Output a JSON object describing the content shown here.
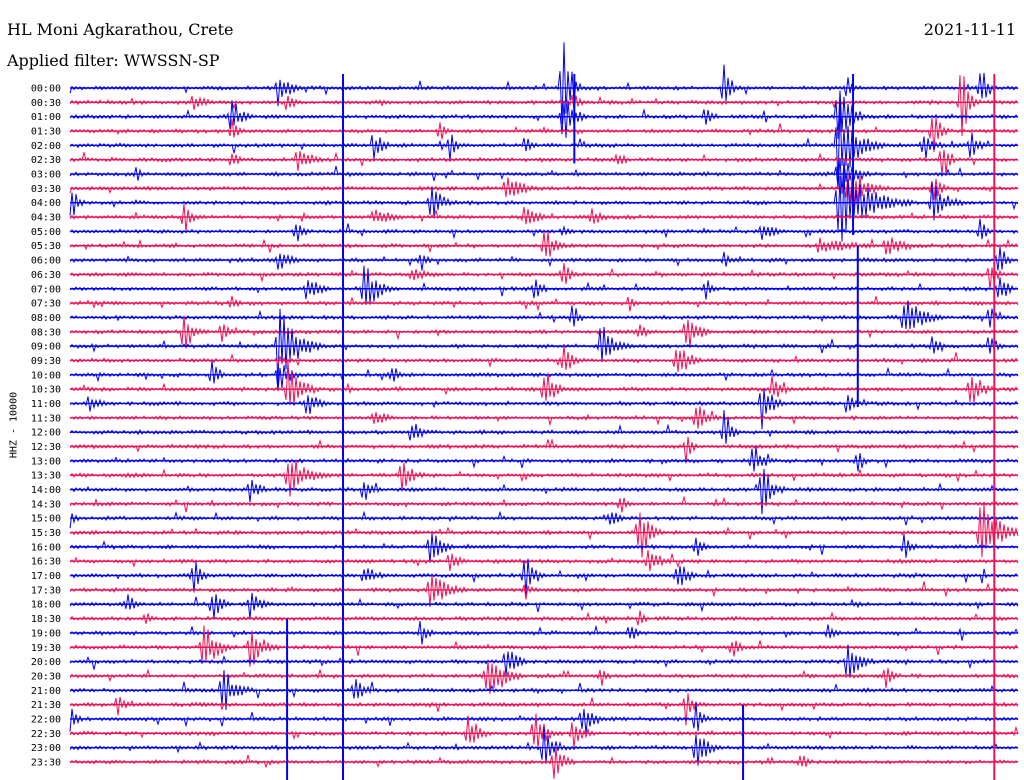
{
  "header": {
    "station": "HL Moni Agkarathou, Crete",
    "filter": "Applied filter: WWSSN-SP",
    "date": "2021-11-11"
  },
  "chart_data": {
    "type": "line",
    "title": "HL Moni Agkarathou, Crete",
    "subtitle": "Applied filter: WWSSN-SP",
    "date": "2021-11-11",
    "ylabel": "HHZ - 10000",
    "row_interval_minutes": 30,
    "row_labels": [
      "00:00",
      "00:30",
      "01:00",
      "01:30",
      "02:00",
      "02:30",
      "03:00",
      "03:30",
      "04:00",
      "04:30",
      "05:00",
      "05:30",
      "06:00",
      "06:30",
      "07:00",
      "07:30",
      "08:00",
      "08:30",
      "09:00",
      "09:30",
      "10:00",
      "10:30",
      "11:00",
      "11:30",
      "12:00",
      "12:30",
      "13:00",
      "13:30",
      "14:00",
      "14:30",
      "15:00",
      "15:30",
      "16:00",
      "16:30",
      "17:00",
      "17:30",
      "18:00",
      "18:30",
      "19:00",
      "19:30",
      "20:00",
      "20:30",
      "21:00",
      "21:30",
      "22:00",
      "22:30",
      "23:00",
      "23:30"
    ],
    "colors": {
      "even_rows": "#0000ee",
      "odd_rows": "#ee1155"
    },
    "grid": false,
    "events": [
      {
        "row": 0,
        "x": 0.22,
        "amp": 22,
        "dur": 0.03
      },
      {
        "row": 0,
        "x": 0.52,
        "amp": 90,
        "dur": 0.02
      },
      {
        "row": 0,
        "x": 0.69,
        "amp": 28,
        "dur": 0.02
      },
      {
        "row": 0,
        "x": 0.82,
        "amp": 14,
        "dur": 0.02
      },
      {
        "row": 0,
        "x": 0.96,
        "amp": 30,
        "dur": 0.02
      },
      {
        "row": 1,
        "x": 0.13,
        "amp": 10,
        "dur": 0.04
      },
      {
        "row": 1,
        "x": 0.23,
        "amp": 16,
        "dur": 0.02
      },
      {
        "row": 1,
        "x": 0.53,
        "amp": 12,
        "dur": 0.02
      },
      {
        "row": 1,
        "x": 0.94,
        "amp": 55,
        "dur": 0.02
      },
      {
        "row": 2,
        "x": 0.17,
        "amp": 22,
        "dur": 0.03
      },
      {
        "row": 2,
        "x": 0.52,
        "amp": 30,
        "dur": 0.03
      },
      {
        "row": 2,
        "x": 0.67,
        "amp": 16,
        "dur": 0.02
      },
      {
        "row": 2,
        "x": 0.81,
        "amp": 55,
        "dur": 0.03
      },
      {
        "row": 3,
        "x": 0.17,
        "amp": 14,
        "dur": 0.02
      },
      {
        "row": 3,
        "x": 0.39,
        "amp": 12,
        "dur": 0.02
      },
      {
        "row": 3,
        "x": 0.91,
        "amp": 30,
        "dur": 0.02
      },
      {
        "row": 4,
        "x": 0.32,
        "amp": 16,
        "dur": 0.03
      },
      {
        "row": 4,
        "x": 0.4,
        "amp": 18,
        "dur": 0.02
      },
      {
        "row": 4,
        "x": 0.48,
        "amp": 12,
        "dur": 0.02
      },
      {
        "row": 4,
        "x": 0.81,
        "amp": 48,
        "dur": 0.05
      },
      {
        "row": 4,
        "x": 0.9,
        "amp": 20,
        "dur": 0.03
      },
      {
        "row": 4,
        "x": 0.95,
        "amp": 22,
        "dur": 0.02
      },
      {
        "row": 5,
        "x": 0.17,
        "amp": 12,
        "dur": 0.02
      },
      {
        "row": 5,
        "x": 0.24,
        "amp": 16,
        "dur": 0.04
      },
      {
        "row": 5,
        "x": 0.58,
        "amp": 10,
        "dur": 0.02
      },
      {
        "row": 5,
        "x": 0.92,
        "amp": 28,
        "dur": 0.02
      },
      {
        "row": 6,
        "x": 0.07,
        "amp": 10,
        "dur": 0.02
      },
      {
        "row": 6,
        "x": 0.81,
        "amp": 28,
        "dur": 0.04
      },
      {
        "row": 7,
        "x": 0.46,
        "amp": 16,
        "dur": 0.05
      },
      {
        "row": 7,
        "x": 0.82,
        "amp": 28,
        "dur": 0.05
      },
      {
        "row": 7,
        "x": 0.91,
        "amp": 14,
        "dur": 0.03
      },
      {
        "row": 8,
        "x": 0.0,
        "amp": 24,
        "dur": 0.02
      },
      {
        "row": 8,
        "x": 0.38,
        "amp": 26,
        "dur": 0.03
      },
      {
        "row": 8,
        "x": 0.81,
        "amp": 50,
        "dur": 0.08
      },
      {
        "row": 8,
        "x": 0.91,
        "amp": 26,
        "dur": 0.04
      },
      {
        "row": 9,
        "x": 0.12,
        "amp": 22,
        "dur": 0.02
      },
      {
        "row": 9,
        "x": 0.32,
        "amp": 10,
        "dur": 0.06
      },
      {
        "row": 9,
        "x": 0.48,
        "amp": 18,
        "dur": 0.03
      },
      {
        "row": 9,
        "x": 0.55,
        "amp": 12,
        "dur": 0.03
      },
      {
        "row": 10,
        "x": 0.24,
        "amp": 12,
        "dur": 0.02
      },
      {
        "row": 10,
        "x": 0.52,
        "amp": 10,
        "dur": 0.02
      },
      {
        "row": 10,
        "x": 0.73,
        "amp": 10,
        "dur": 0.04
      },
      {
        "row": 10,
        "x": 0.96,
        "amp": 14,
        "dur": 0.02
      },
      {
        "row": 11,
        "x": 0.5,
        "amp": 22,
        "dur": 0.03
      },
      {
        "row": 11,
        "x": 0.79,
        "amp": 10,
        "dur": 0.1
      },
      {
        "row": 11,
        "x": 0.86,
        "amp": 14,
        "dur": 0.05
      },
      {
        "row": 12,
        "x": 0.22,
        "amp": 12,
        "dur": 0.04
      },
      {
        "row": 12,
        "x": 0.37,
        "amp": 14,
        "dur": 0.02
      },
      {
        "row": 12,
        "x": 0.69,
        "amp": 12,
        "dur": 0.02
      },
      {
        "row": 12,
        "x": 0.98,
        "amp": 22,
        "dur": 0.02
      },
      {
        "row": 13,
        "x": 0.36,
        "amp": 8,
        "dur": 0.06
      },
      {
        "row": 13,
        "x": 0.52,
        "amp": 16,
        "dur": 0.02
      },
      {
        "row": 13,
        "x": 0.97,
        "amp": 20,
        "dur": 0.02
      },
      {
        "row": 14,
        "x": 0.25,
        "amp": 14,
        "dur": 0.04
      },
      {
        "row": 14,
        "x": 0.31,
        "amp": 30,
        "dur": 0.04
      },
      {
        "row": 14,
        "x": 0.49,
        "amp": 18,
        "dur": 0.02
      },
      {
        "row": 14,
        "x": 0.67,
        "amp": 14,
        "dur": 0.02
      },
      {
        "row": 14,
        "x": 0.98,
        "amp": 22,
        "dur": 0.02
      },
      {
        "row": 15,
        "x": 0.17,
        "amp": 10,
        "dur": 0.02
      },
      {
        "row": 15,
        "x": 0.59,
        "amp": 10,
        "dur": 0.02
      },
      {
        "row": 16,
        "x": 0.53,
        "amp": 16,
        "dur": 0.02
      },
      {
        "row": 16,
        "x": 0.88,
        "amp": 26,
        "dur": 0.05
      },
      {
        "row": 16,
        "x": 0.97,
        "amp": 14,
        "dur": 0.02
      },
      {
        "row": 17,
        "x": 0.12,
        "amp": 24,
        "dur": 0.03
      },
      {
        "row": 17,
        "x": 0.16,
        "amp": 12,
        "dur": 0.02
      },
      {
        "row": 17,
        "x": 0.6,
        "amp": 12,
        "dur": 0.03
      },
      {
        "row": 17,
        "x": 0.65,
        "amp": 28,
        "dur": 0.03
      },
      {
        "row": 18,
        "x": 0.22,
        "amp": 48,
        "dur": 0.05
      },
      {
        "row": 18,
        "x": 0.56,
        "amp": 30,
        "dur": 0.04
      },
      {
        "row": 18,
        "x": 0.91,
        "amp": 14,
        "dur": 0.02
      },
      {
        "row": 18,
        "x": 0.97,
        "amp": 18,
        "dur": 0.02
      },
      {
        "row": 19,
        "x": 0.22,
        "amp": 12,
        "dur": 0.02
      },
      {
        "row": 19,
        "x": 0.52,
        "amp": 20,
        "dur": 0.03
      },
      {
        "row": 19,
        "x": 0.64,
        "amp": 28,
        "dur": 0.03
      },
      {
        "row": 20,
        "x": 0.15,
        "amp": 18,
        "dur": 0.02
      },
      {
        "row": 20,
        "x": 0.22,
        "amp": 20,
        "dur": 0.03
      },
      {
        "row": 20,
        "x": 0.34,
        "amp": 12,
        "dur": 0.02
      },
      {
        "row": 21,
        "x": 0.23,
        "amp": 30,
        "dur": 0.04
      },
      {
        "row": 21,
        "x": 0.5,
        "amp": 26,
        "dur": 0.03
      },
      {
        "row": 21,
        "x": 0.74,
        "amp": 18,
        "dur": 0.03
      },
      {
        "row": 21,
        "x": 0.95,
        "amp": 26,
        "dur": 0.03
      },
      {
        "row": 22,
        "x": 0.02,
        "amp": 12,
        "dur": 0.03
      },
      {
        "row": 22,
        "x": 0.25,
        "amp": 18,
        "dur": 0.03
      },
      {
        "row": 22,
        "x": 0.73,
        "amp": 28,
        "dur": 0.03
      },
      {
        "row": 22,
        "x": 0.82,
        "amp": 14,
        "dur": 0.02
      },
      {
        "row": 23,
        "x": 0.32,
        "amp": 10,
        "dur": 0.04
      },
      {
        "row": 23,
        "x": 0.66,
        "amp": 22,
        "dur": 0.03
      },
      {
        "row": 24,
        "x": 0.36,
        "amp": 16,
        "dur": 0.03
      },
      {
        "row": 24,
        "x": 0.69,
        "amp": 28,
        "dur": 0.02
      },
      {
        "row": 25,
        "x": 0.65,
        "amp": 18,
        "dur": 0.02
      },
      {
        "row": 26,
        "x": 0.72,
        "amp": 22,
        "dur": 0.03
      },
      {
        "row": 26,
        "x": 0.83,
        "amp": 16,
        "dur": 0.02
      },
      {
        "row": 27,
        "x": 0.23,
        "amp": 26,
        "dur": 0.05
      },
      {
        "row": 27,
        "x": 0.35,
        "amp": 20,
        "dur": 0.03
      },
      {
        "row": 28,
        "x": 0.19,
        "amp": 14,
        "dur": 0.03
      },
      {
        "row": 28,
        "x": 0.31,
        "amp": 16,
        "dur": 0.03
      },
      {
        "row": 28,
        "x": 0.73,
        "amp": 28,
        "dur": 0.03
      },
      {
        "row": 29,
        "x": 0.58,
        "amp": 12,
        "dur": 0.02
      },
      {
        "row": 30,
        "x": 0.0,
        "amp": 10,
        "dur": 0.02
      },
      {
        "row": 30,
        "x": 0.57,
        "amp": 16,
        "dur": 0.02
      },
      {
        "row": 31,
        "x": 0.6,
        "amp": 36,
        "dur": 0.03
      },
      {
        "row": 31,
        "x": 0.96,
        "amp": 44,
        "dur": 0.05
      },
      {
        "row": 32,
        "x": 0.38,
        "amp": 26,
        "dur": 0.03
      },
      {
        "row": 32,
        "x": 0.66,
        "amp": 14,
        "dur": 0.02
      },
      {
        "row": 32,
        "x": 0.88,
        "amp": 18,
        "dur": 0.02
      },
      {
        "row": 33,
        "x": 0.4,
        "amp": 12,
        "dur": 0.03
      },
      {
        "row": 33,
        "x": 0.61,
        "amp": 20,
        "dur": 0.03
      },
      {
        "row": 34,
        "x": 0.13,
        "amp": 22,
        "dur": 0.02
      },
      {
        "row": 34,
        "x": 0.31,
        "amp": 12,
        "dur": 0.04
      },
      {
        "row": 34,
        "x": 0.48,
        "amp": 24,
        "dur": 0.03
      },
      {
        "row": 34,
        "x": 0.64,
        "amp": 20,
        "dur": 0.03
      },
      {
        "row": 35,
        "x": 0.38,
        "amp": 22,
        "dur": 0.05
      },
      {
        "row": 35,
        "x": 0.48,
        "amp": 12,
        "dur": 0.02
      },
      {
        "row": 36,
        "x": 0.06,
        "amp": 14,
        "dur": 0.02
      },
      {
        "row": 36,
        "x": 0.15,
        "amp": 18,
        "dur": 0.03
      },
      {
        "row": 36,
        "x": 0.19,
        "amp": 16,
        "dur": 0.03
      },
      {
        "row": 37,
        "x": 0.08,
        "amp": 10,
        "dur": 0.02
      },
      {
        "row": 37,
        "x": 0.6,
        "amp": 10,
        "dur": 0.02
      },
      {
        "row": 38,
        "x": 0.37,
        "amp": 18,
        "dur": 0.02
      },
      {
        "row": 38,
        "x": 0.59,
        "amp": 14,
        "dur": 0.02
      },
      {
        "row": 38,
        "x": 0.8,
        "amp": 16,
        "dur": 0.02
      },
      {
        "row": 39,
        "x": 0.14,
        "amp": 30,
        "dur": 0.04
      },
      {
        "row": 39,
        "x": 0.19,
        "amp": 24,
        "dur": 0.04
      },
      {
        "row": 39,
        "x": 0.7,
        "amp": 12,
        "dur": 0.02
      },
      {
        "row": 40,
        "x": 0.46,
        "amp": 22,
        "dur": 0.03
      },
      {
        "row": 40,
        "x": 0.82,
        "amp": 22,
        "dur": 0.04
      },
      {
        "row": 41,
        "x": 0.44,
        "amp": 40,
        "dur": 0.04
      },
      {
        "row": 41,
        "x": 0.56,
        "amp": 12,
        "dur": 0.02
      },
      {
        "row": 41,
        "x": 0.86,
        "amp": 14,
        "dur": 0.02
      },
      {
        "row": 42,
        "x": 0.16,
        "amp": 28,
        "dur": 0.04
      },
      {
        "row": 42,
        "x": 0.3,
        "amp": 14,
        "dur": 0.03
      },
      {
        "row": 43,
        "x": 0.05,
        "amp": 14,
        "dur": 0.02
      },
      {
        "row": 43,
        "x": 0.65,
        "amp": 22,
        "dur": 0.02
      },
      {
        "row": 44,
        "x": 0.0,
        "amp": 14,
        "dur": 0.02
      },
      {
        "row": 44,
        "x": 0.54,
        "amp": 24,
        "dur": 0.03
      },
      {
        "row": 44,
        "x": 0.66,
        "amp": 20,
        "dur": 0.02
      },
      {
        "row": 45,
        "x": 0.42,
        "amp": 24,
        "dur": 0.03
      },
      {
        "row": 45,
        "x": 0.49,
        "amp": 28,
        "dur": 0.03
      },
      {
        "row": 45,
        "x": 0.53,
        "amp": 20,
        "dur": 0.03
      },
      {
        "row": 46,
        "x": 0.5,
        "amp": 26,
        "dur": 0.03
      },
      {
        "row": 46,
        "x": 0.66,
        "amp": 28,
        "dur": 0.03
      },
      {
        "row": 47,
        "x": 0.51,
        "amp": 22,
        "dur": 0.03
      },
      {
        "row": 47,
        "x": 0.77,
        "amp": 14,
        "dur": 0.02
      }
    ],
    "spikes": [
      {
        "x": 0.229,
        "from_row": 38,
        "to_row": 47,
        "color": "#0000ee"
      },
      {
        "x": 0.288,
        "from_row": 0,
        "to_row": 47,
        "color": "#0000ee"
      },
      {
        "x": 0.532,
        "from_row": 0,
        "to_row": 4,
        "color": "#0000ee"
      },
      {
        "x": 0.826,
        "from_row": 0,
        "to_row": 9,
        "color": "#0000ee"
      },
      {
        "x": 0.831,
        "from_row": 12,
        "to_row": 21,
        "color": "#0000ee"
      },
      {
        "x": 0.975,
        "from_row": 0,
        "to_row": 47,
        "color": "#ee1155"
      },
      {
        "x": 0.71,
        "from_row": 44,
        "to_row": 47,
        "color": "#0000ee"
      }
    ]
  }
}
